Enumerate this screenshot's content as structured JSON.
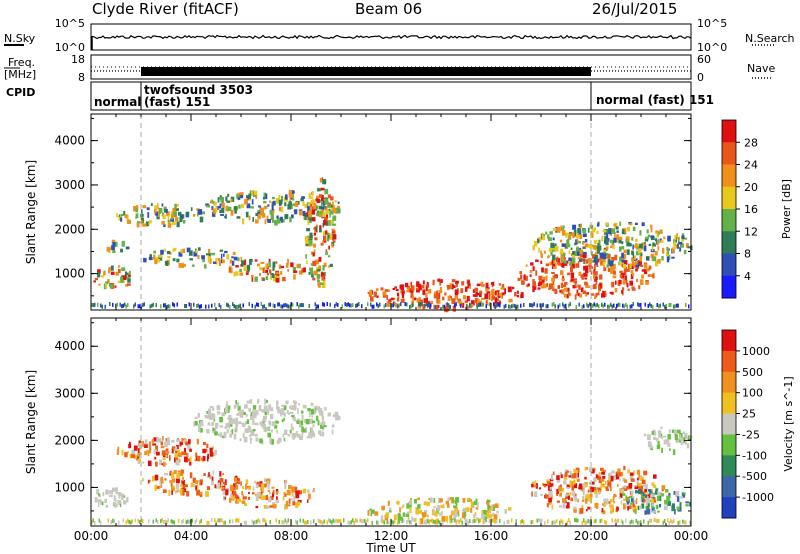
{
  "header": {
    "station": "Clyde River (fitACF)",
    "beam": "Beam 06",
    "date": "26/Jul/2015"
  },
  "side_labels": {
    "nsky": "N.Sky",
    "freq": "Freq.",
    "freq_unit": "[MHz]",
    "cpid": "CPID",
    "nsearch": "N.Search",
    "nave": "Nave"
  },
  "nsky_panel": {
    "left_ticks": [
      "10^5",
      "10^0"
    ],
    "right_ticks": [
      "10^5",
      "10^0"
    ]
  },
  "freq_panel": {
    "left_ticks": [
      "18",
      "8"
    ],
    "right_ticks": [
      "60",
      "0"
    ]
  },
  "cpid_modes": [
    {
      "label": "normal",
      "start_hour": 0,
      "end_hour": 2
    },
    {
      "label": "twofsound 3503",
      "label2": "(fast) 151",
      "start_hour": 2,
      "end_hour": 20
    },
    {
      "label": "normal (fast) 151",
      "start_hour": 20,
      "end_hour": 24
    }
  ],
  "chart_data": [
    {
      "type": "heatmap",
      "title": "Power",
      "xlabel": "Time UT",
      "ylabel": "Slant Range [km]",
      "colorbar_label": "Power [dB]",
      "xlim_hours": [
        0,
        24
      ],
      "x_ticks": [
        "00:00",
        "04:00",
        "08:00",
        "12:00",
        "16:00",
        "20:00",
        "00:00"
      ],
      "ylim": [
        180,
        4600
      ],
      "y_ticks": [
        1000,
        2000,
        3000,
        4000
      ],
      "colorbar_ticks": [
        "4",
        "8",
        "12",
        "16",
        "20",
        "24",
        "28"
      ],
      "colorbar_colors": [
        "#1a1aff",
        "#2f4fb8",
        "#2e7d57",
        "#66b04a",
        "#e8c81a",
        "#f0901a",
        "#e8561a",
        "#e01010"
      ],
      "echo_regions": [
        {
          "start_hour": 0.0,
          "end_hour": 1.8,
          "range_min": 700,
          "range_max": 1200,
          "level": "high"
        },
        {
          "start_hour": 0.5,
          "end_hour": 1.5,
          "range_min": 1500,
          "range_max": 1800,
          "level": "medium"
        },
        {
          "start_hour": 1.0,
          "end_hour": 4.5,
          "range_min": 2100,
          "range_max": 2600,
          "level": "medium"
        },
        {
          "start_hour": 2.0,
          "end_hour": 6.0,
          "range_min": 1200,
          "range_max": 1600,
          "level": "medium"
        },
        {
          "start_hour": 4.5,
          "end_hour": 10.0,
          "range_min": 2200,
          "range_max": 2900,
          "level": "medium"
        },
        {
          "start_hour": 5.5,
          "end_hour": 8.5,
          "range_min": 900,
          "range_max": 1400,
          "level": "high"
        },
        {
          "start_hour": 8.5,
          "end_hour": 9.7,
          "range_min": 700,
          "range_max": 3200,
          "level": "high"
        },
        {
          "start_hour": 11.0,
          "end_hour": 17.2,
          "range_min": 250,
          "range_max": 900,
          "level": "very_high"
        },
        {
          "start_hour": 17.0,
          "end_hour": 22.5,
          "range_min": 500,
          "range_max": 1500,
          "level": "very_high"
        },
        {
          "start_hour": 17.5,
          "end_hour": 24.0,
          "range_min": 1200,
          "range_max": 2200,
          "level": "medium"
        }
      ]
    },
    {
      "type": "heatmap",
      "title": "Velocity",
      "xlabel": "Time UT",
      "ylabel": "Slant Range [km]",
      "colorbar_label": "Velocity [m s^-1]",
      "xlim_hours": [
        0,
        24
      ],
      "x_ticks": [
        "00:00",
        "04:00",
        "08:00",
        "12:00",
        "16:00",
        "20:00",
        "00:00"
      ],
      "ylim": [
        180,
        4600
      ],
      "y_ticks": [
        1000,
        2000,
        3000,
        4000
      ],
      "colorbar_ticks": [
        "1000",
        "500",
        "100",
        "25",
        "-25",
        "-100",
        "-500",
        "-1000"
      ],
      "colorbar_colors": [
        "#2040c0",
        "#3a68a8",
        "#2f8a5a",
        "#66c040",
        "#c8c8c0",
        "#f0c020",
        "#f09020",
        "#ee5a1a",
        "#e01010"
      ],
      "echo_regions": [
        {
          "start_hour": 0.0,
          "end_hour": 1.5,
          "range_min": 600,
          "range_max": 1100,
          "level": "ground"
        },
        {
          "start_hour": 1.0,
          "end_hour": 5.0,
          "range_min": 1500,
          "range_max": 2100,
          "level": "away"
        },
        {
          "start_hour": 2.0,
          "end_hour": 6.0,
          "range_min": 900,
          "range_max": 1400,
          "level": "away"
        },
        {
          "start_hour": 4.0,
          "end_hour": 10.0,
          "range_min": 2000,
          "range_max": 2900,
          "level": "ground"
        },
        {
          "start_hour": 5.0,
          "end_hour": 9.0,
          "range_min": 600,
          "range_max": 1200,
          "level": "away"
        },
        {
          "start_hour": 11.0,
          "end_hour": 17.0,
          "range_min": 300,
          "range_max": 800,
          "level": "mixed"
        },
        {
          "start_hour": 17.5,
          "end_hour": 23.0,
          "range_min": 500,
          "range_max": 1500,
          "level": "away"
        },
        {
          "start_hour": 21.0,
          "end_hour": 24.0,
          "range_min": 500,
          "range_max": 1000,
          "level": "toward"
        },
        {
          "start_hour": 22.0,
          "end_hour": 24.0,
          "range_min": 1800,
          "range_max": 2300,
          "level": "ground"
        }
      ]
    }
  ]
}
